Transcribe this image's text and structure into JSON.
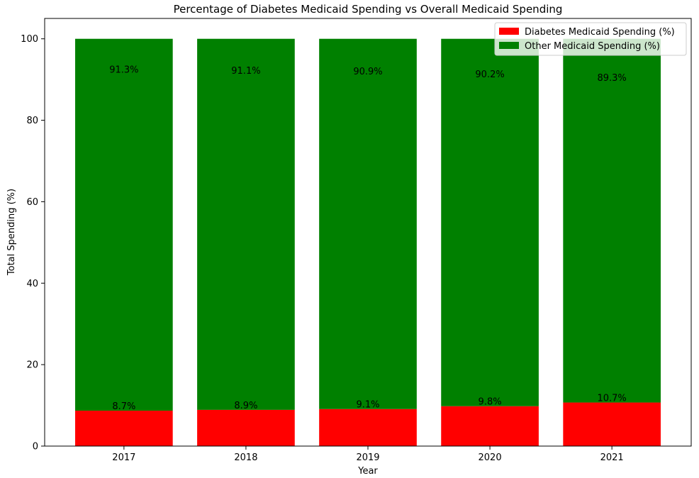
{
  "chart_data": {
    "type": "bar",
    "stacked": true,
    "title": "Percentage of Diabetes Medicaid Spending vs Overall Medicaid Spending",
    "xlabel": "Year",
    "ylabel": "Total Spending (%)",
    "categories": [
      "2017",
      "2018",
      "2019",
      "2020",
      "2021"
    ],
    "ylim": [
      0,
      105
    ],
    "yticks": [
      0,
      20,
      40,
      60,
      80,
      100
    ],
    "grid": false,
    "legend_position": "top-right",
    "series": [
      {
        "name": "Diabetes Medicaid Spending (%)",
        "color": "#ff0000",
        "values": [
          8.7,
          8.9,
          9.1,
          9.8,
          10.7
        ],
        "labels": [
          "8.7%",
          "8.9%",
          "9.1%",
          "9.8%",
          "10.7%"
        ]
      },
      {
        "name": "Other Medicaid Spending (%)",
        "color": "#008000",
        "values": [
          91.3,
          91.1,
          90.9,
          90.2,
          89.3
        ],
        "labels": [
          "91.3%",
          "91.1%",
          "90.9%",
          "90.2%",
          "89.3%"
        ]
      }
    ]
  }
}
